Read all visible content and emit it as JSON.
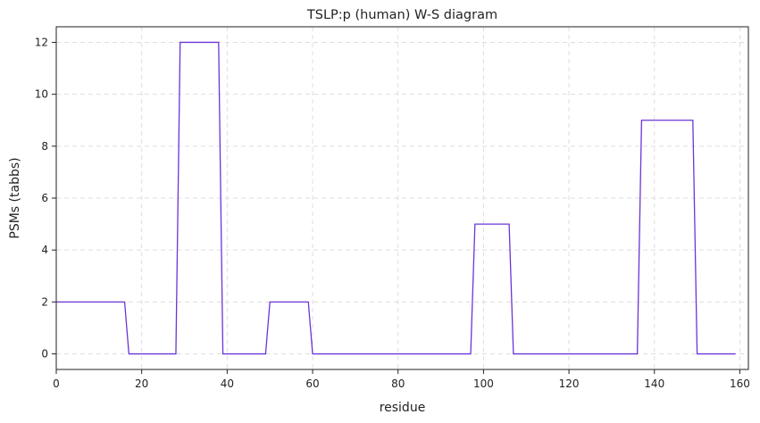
{
  "chart_data": {
    "type": "line",
    "title": "TSLP:p (human) W-S diagram",
    "xlabel": "residue",
    "ylabel": "PSMs (tabbs)",
    "xlim": [
      0,
      162
    ],
    "ylim": [
      -0.6,
      12.6
    ],
    "xticks": [
      0,
      20,
      40,
      60,
      80,
      100,
      120,
      140,
      160
    ],
    "yticks": [
      0,
      2,
      4,
      6,
      8,
      10,
      12
    ],
    "grid": true,
    "series": [
      {
        "color": "#6a35d6",
        "x": [
          0,
          16,
          17,
          28,
          29,
          38,
          39,
          49,
          50,
          59,
          60,
          97,
          98,
          106,
          107,
          136,
          137,
          149,
          150,
          159
        ],
        "y": [
          2,
          2,
          0,
          0,
          12,
          12,
          0,
          0,
          2,
          2,
          0,
          0,
          5,
          5,
          0,
          0,
          9,
          9,
          0,
          0
        ]
      }
    ]
  }
}
